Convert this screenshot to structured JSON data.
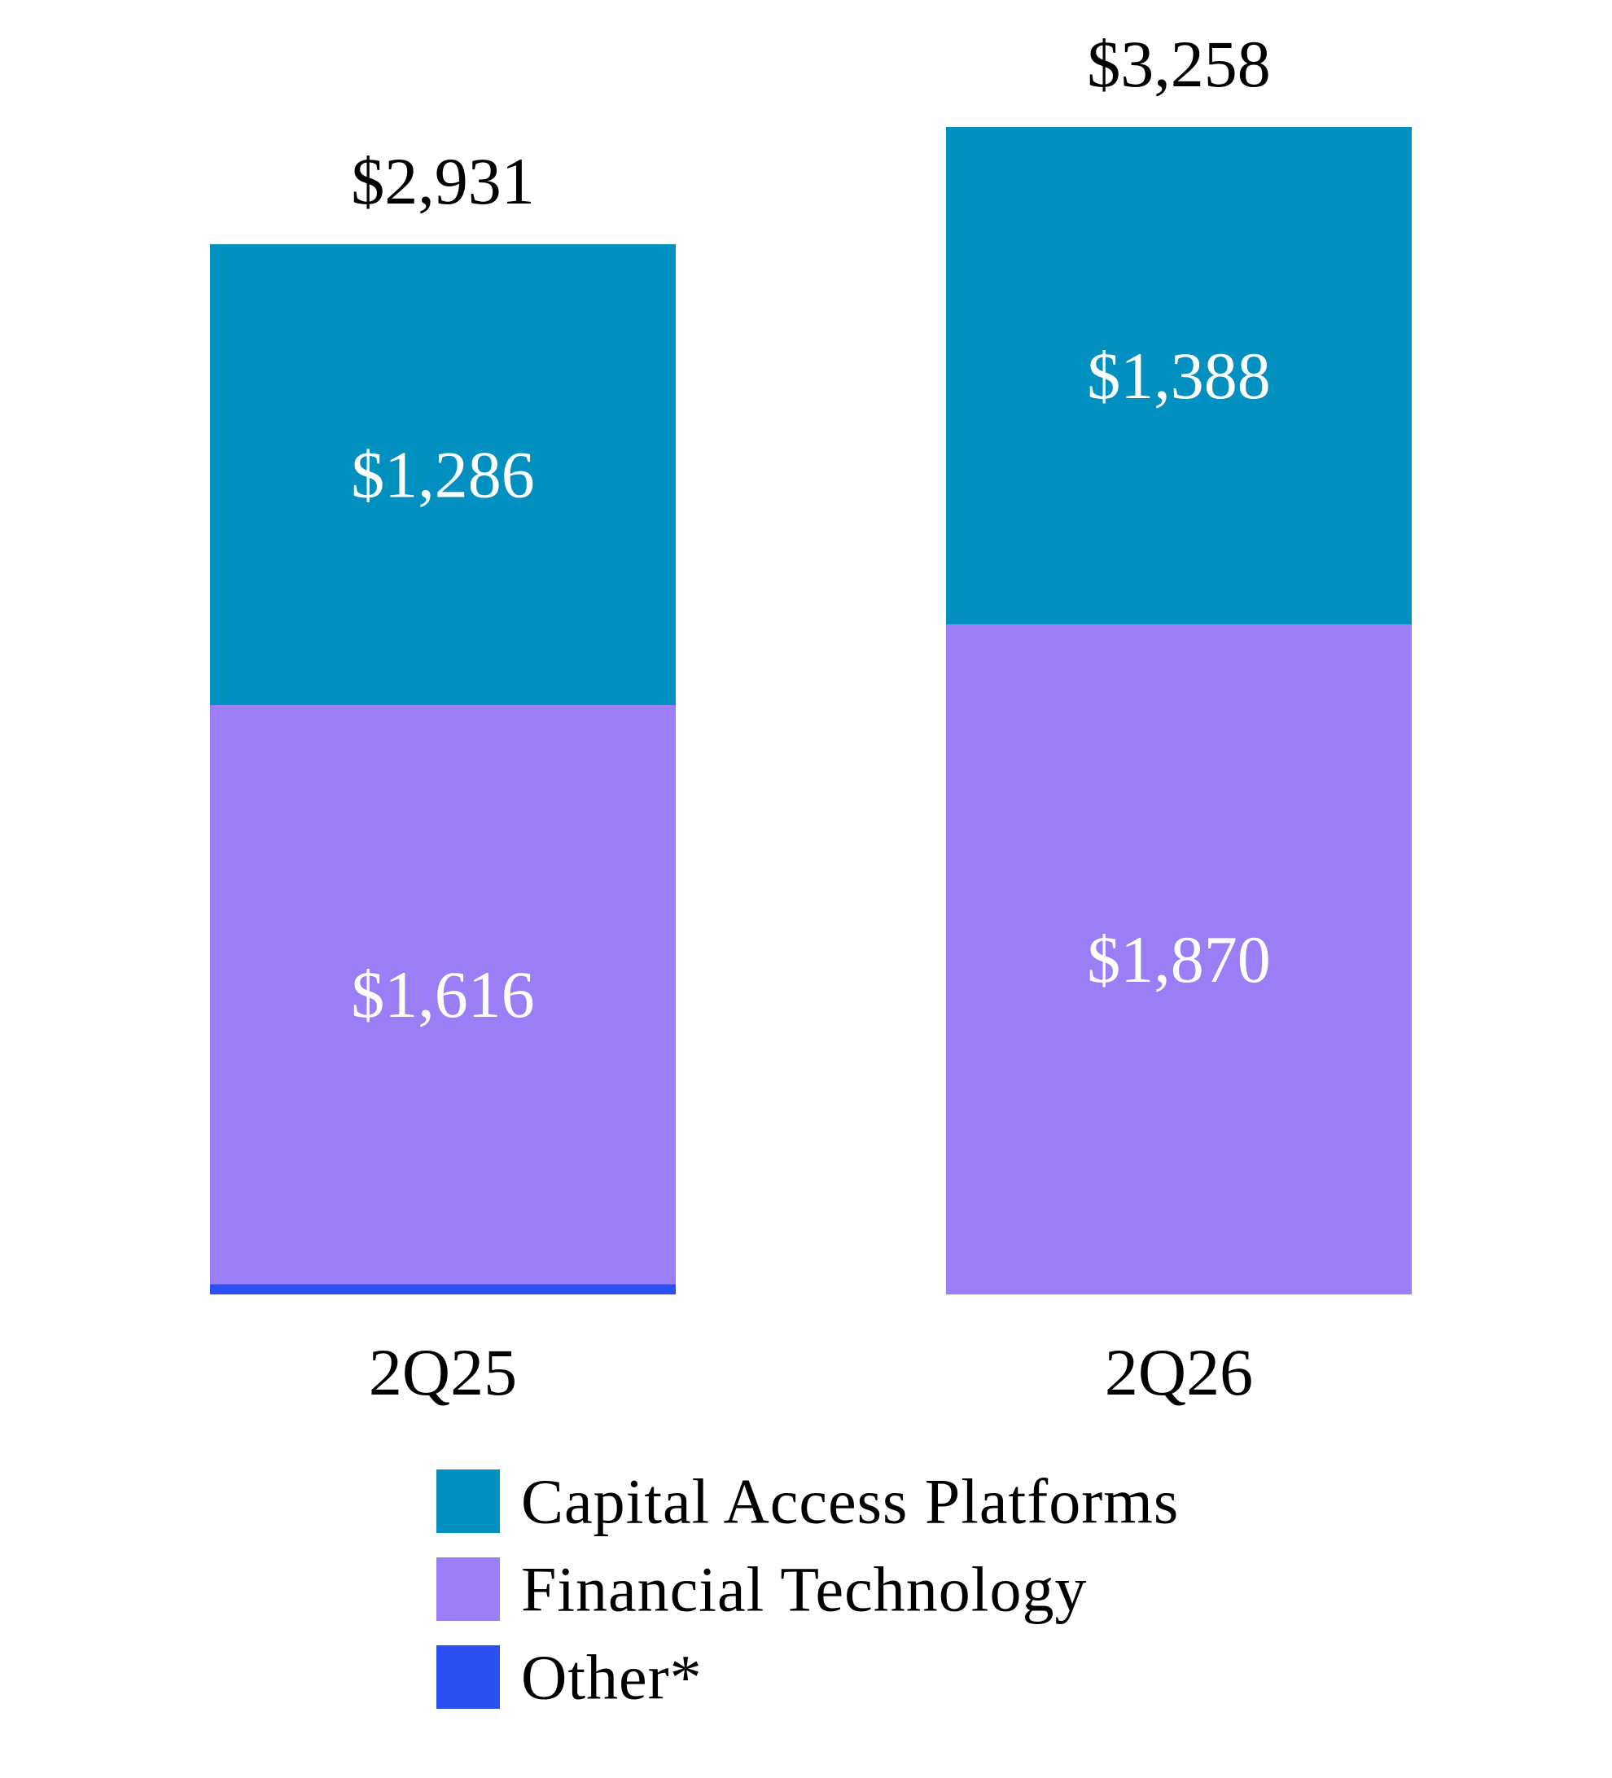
{
  "chart_data": {
    "type": "bar",
    "stacked": true,
    "categories": [
      "2Q25",
      "2Q26"
    ],
    "totals": [
      2931,
      3258
    ],
    "total_labels": [
      "$2,931",
      "$3,258"
    ],
    "series": [
      {
        "name": "Other*",
        "color": "#2b4ff0",
        "values": [
          29,
          0
        ],
        "labels": [
          "",
          ""
        ]
      },
      {
        "name": "Financial Technology",
        "color": "#9b7ef5",
        "values": [
          1616,
          1870
        ],
        "labels": [
          "$1,616",
          "$1,870"
        ]
      },
      {
        "name": "Capital Access Platforms",
        "color": "#0190bf",
        "values": [
          1286,
          1388
        ],
        "labels": [
          "$1,286",
          "$1,388"
        ]
      }
    ],
    "legend": [
      "Capital Access Platforms",
      "Financial Technology",
      "Other*"
    ],
    "legend_position": "bottom",
    "grid": false,
    "ylim": [
      0,
      3258
    ]
  }
}
